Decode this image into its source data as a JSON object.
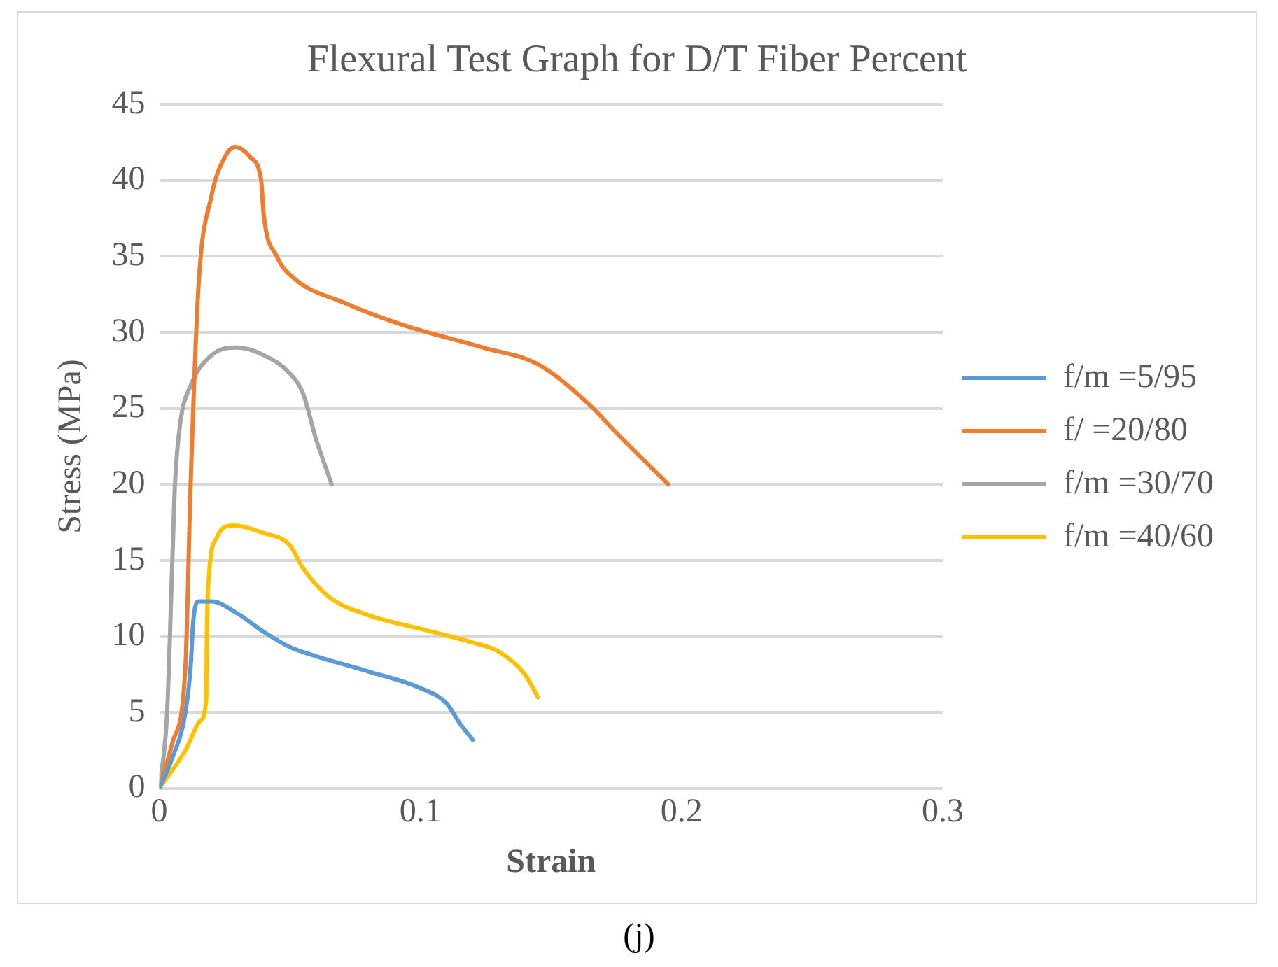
{
  "chart_data": {
    "type": "line",
    "title": "Flexural Test Graph for D/T Fiber Percent",
    "xlabel": "Strain",
    "ylabel": "Stress (MPa)",
    "annotations": [
      "(j)"
    ],
    "xlim": [
      0,
      0.3
    ],
    "xticks": [
      0,
      0.1,
      0.2,
      0.3
    ],
    "ylim": [
      0,
      45
    ],
    "yticks": [
      0,
      5,
      10,
      15,
      20,
      25,
      30,
      35,
      40,
      45
    ],
    "grid": "y",
    "legend": "right",
    "marker": "none",
    "line_style": "solid",
    "series": [
      {
        "name": "f/m =5/95",
        "color": "#5b9bd5",
        "x": [
          0,
          0.005,
          0.01,
          0.012,
          0.013,
          0.015,
          0.02,
          0.03,
          0.04,
          0.05,
          0.06,
          0.08,
          0.1,
          0.11,
          0.115,
          0.12
        ],
        "values": [
          0,
          2,
          5,
          8,
          11,
          12.3,
          12.3,
          11.5,
          10.3,
          9.3,
          8.7,
          7.7,
          6.6,
          5.6,
          4.3,
          3.2
        ]
      },
      {
        "name": "f/ =20/80",
        "color": "#ed7d31",
        "x": [
          0,
          0.005,
          0.01,
          0.012,
          0.015,
          0.02,
          0.025,
          0.029,
          0.035,
          0.039,
          0.04,
          0.045,
          0.052,
          0.07,
          0.093,
          0.124,
          0.145,
          0.165,
          0.175,
          0.195
        ],
        "values": [
          0,
          3,
          8,
          20,
          33,
          39,
          41.5,
          42.2,
          41.5,
          40,
          37.7,
          35,
          33.5,
          32,
          30.5,
          29,
          27.9,
          25.2,
          23.4,
          20
        ]
      },
      {
        "name": "f/m =30/70",
        "color": "#a5a5a5",
        "x": [
          0,
          0.003,
          0.005,
          0.006,
          0.008,
          0.012,
          0.02,
          0.03,
          0.04,
          0.05,
          0.055,
          0.06,
          0.066
        ],
        "values": [
          0,
          5,
          15,
          20,
          24,
          26.5,
          28.5,
          29,
          28.5,
          27.3,
          26,
          23,
          20
        ]
      },
      {
        "name": "f/m =40/60",
        "color": "#ffc000",
        "x": [
          0,
          0.01,
          0.016,
          0.018,
          0.0182,
          0.019,
          0.022,
          0.028,
          0.04,
          0.05,
          0.055,
          0.065,
          0.08,
          0.1,
          0.12,
          0.13,
          0.14,
          0.145
        ],
        "values": [
          0,
          2.5,
          4.5,
          6,
          10,
          14,
          16.5,
          17.3,
          16.8,
          16,
          14.5,
          12.6,
          11.4,
          10.5,
          9.6,
          9,
          7.5,
          6
        ]
      }
    ]
  }
}
